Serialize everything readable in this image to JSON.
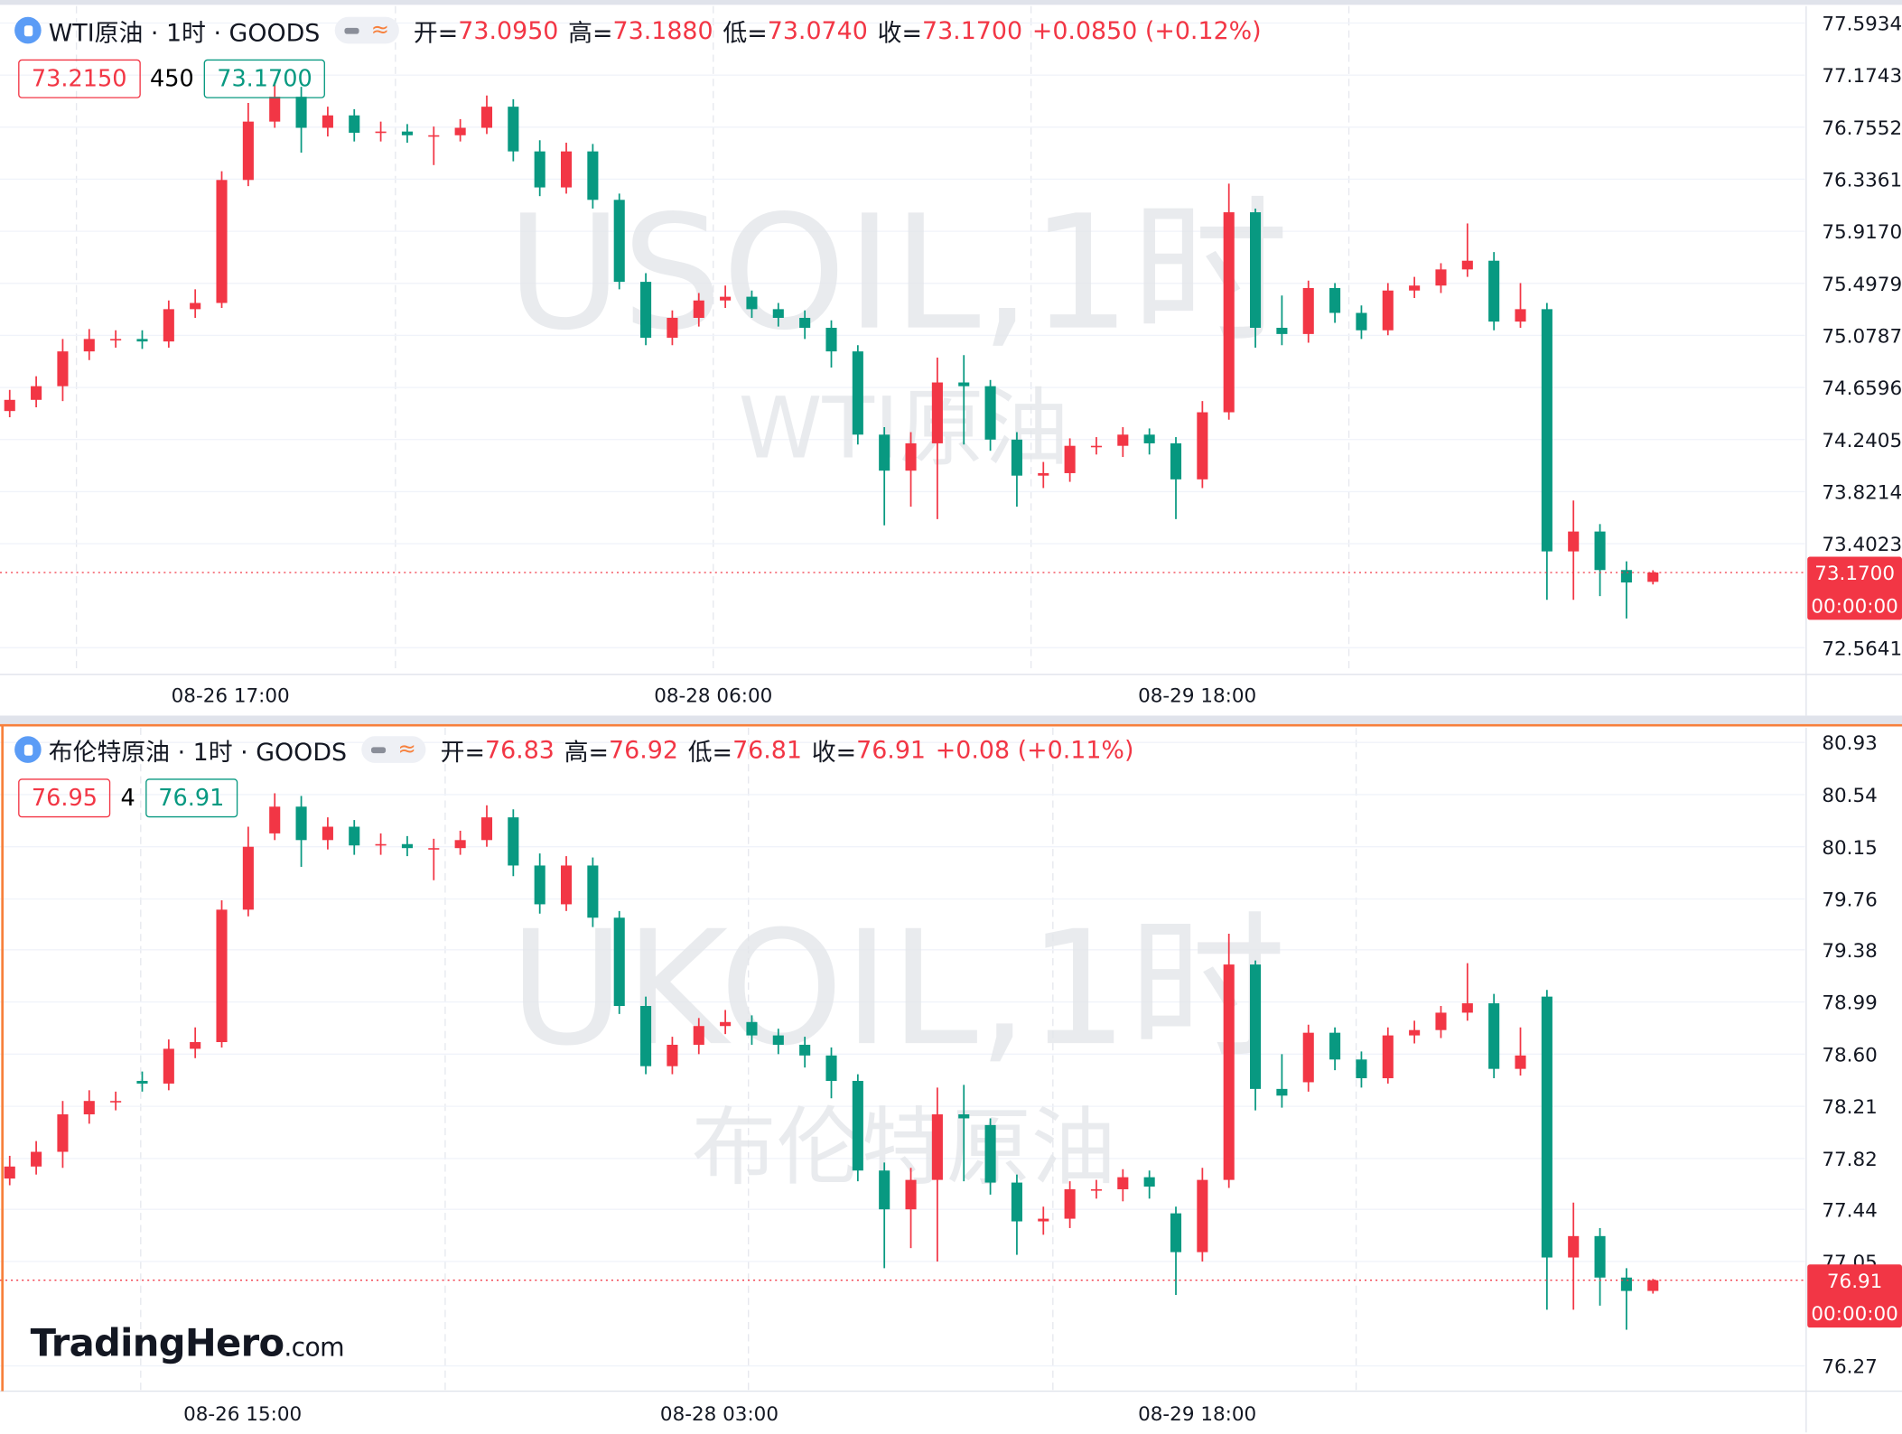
{
  "chart_data": [
    {
      "type": "candlestick",
      "title": "WTI原油 · 1时 · GOODS",
      "watermark": "USOIL,1时",
      "watermark_sub": "WTI原油",
      "ohlc_labels": [
        "开=",
        "高=",
        "低=",
        "收="
      ],
      "ohlc_printed": [
        "73.0950",
        "73.1880",
        "73.0740",
        "73.1700"
      ],
      "change": "+0.0850 (+0.12%)",
      "bid": "73.2150",
      "spread": "450",
      "ask": "73.1700",
      "last_price_label": "73.1700",
      "countdown": "00:00:00",
      "x_labels": [
        "08-26 17:00",
        "08-28 06:00",
        "08-29 18:00"
      ],
      "up_color": "#f23645",
      "down_color": "#089981",
      "ylim": [
        72.36,
        77.73
      ],
      "yticks": [
        77.5934,
        77.1743,
        76.7552,
        76.3361,
        {
          "value": 75.917,
          "label": "75.9170"
        },
        75.4979,
        75.0787,
        74.6596,
        74.2405,
        73.8214,
        73.4023,
        72.5641
      ],
      "open": [
        74.47,
        74.56,
        74.67,
        74.95,
        75.05,
        75.05,
        75.03,
        75.29,
        75.34,
        76.33,
        76.8,
        77.0,
        76.75,
        76.85,
        76.71,
        76.72,
        76.69,
        76.69,
        76.75,
        76.92,
        76.56,
        76.27,
        76.56,
        76.17,
        75.51,
        75.06,
        75.22,
        75.36,
        75.39,
        75.29,
        75.22,
        75.14,
        74.95,
        74.28,
        73.99,
        74.21,
        74.7,
        74.67,
        74.24,
        73.95,
        73.97,
        74.19,
        74.19,
        74.28,
        74.21,
        73.92,
        74.46,
        76.07,
        75.14,
        75.09,
        75.46,
        75.26,
        75.12,
        75.44,
        75.48,
        75.61,
        75.68,
        75.19,
        75.29,
        73.34,
        73.5,
        73.19,
        73.095
      ],
      "high": [
        74.64,
        74.75,
        75.05,
        75.13,
        75.12,
        75.12,
        75.36,
        75.45,
        76.4,
        76.95,
        77.1,
        77.08,
        76.92,
        76.9,
        76.8,
        76.78,
        76.76,
        76.82,
        77.01,
        76.98,
        76.65,
        76.63,
        76.62,
        76.22,
        75.58,
        75.28,
        75.42,
        75.48,
        75.44,
        75.34,
        75.28,
        75.2,
        75.0,
        74.34,
        74.3,
        74.9,
        74.92,
        74.72,
        74.3,
        74.06,
        74.25,
        74.26,
        74.34,
        74.33,
        74.26,
        74.55,
        76.3,
        76.1,
        75.4,
        75.52,
        75.5,
        75.32,
        75.5,
        75.55,
        75.66,
        75.98,
        75.75,
        75.5,
        75.34,
        73.75,
        73.56,
        73.26,
        73.188
      ],
      "low": [
        74.42,
        74.5,
        74.55,
        74.88,
        74.98,
        74.97,
        74.98,
        75.22,
        75.3,
        76.28,
        76.75,
        76.55,
        76.68,
        76.64,
        76.64,
        76.63,
        76.45,
        76.64,
        76.7,
        76.48,
        76.2,
        76.22,
        76.1,
        75.45,
        75.0,
        75.0,
        75.15,
        75.3,
        75.22,
        75.15,
        75.05,
        74.82,
        74.2,
        73.55,
        73.7,
        73.6,
        74.2,
        74.15,
        73.7,
        73.85,
        73.9,
        74.12,
        74.1,
        74.12,
        73.6,
        73.85,
        74.4,
        74.98,
        75.0,
        75.02,
        75.18,
        75.05,
        75.08,
        75.38,
        75.42,
        75.55,
        75.12,
        75.14,
        72.95,
        72.95,
        72.98,
        72.8,
        73.074
      ],
      "close": [
        74.56,
        74.67,
        74.95,
        75.05,
        75.05,
        75.03,
        75.29,
        75.34,
        76.33,
        76.8,
        77.0,
        76.75,
        76.85,
        76.71,
        76.72,
        76.69,
        76.69,
        76.75,
        76.92,
        76.56,
        76.27,
        76.56,
        76.17,
        75.51,
        75.06,
        75.22,
        75.36,
        75.39,
        75.29,
        75.22,
        75.14,
        74.95,
        74.28,
        73.99,
        74.21,
        74.7,
        74.67,
        74.24,
        73.95,
        73.97,
        74.19,
        74.19,
        74.28,
        74.21,
        73.92,
        74.46,
        76.07,
        75.14,
        75.09,
        75.46,
        75.26,
        75.12,
        75.44,
        75.48,
        75.61,
        75.68,
        75.19,
        75.29,
        73.34,
        73.5,
        73.19,
        73.09,
        73.17
      ]
    },
    {
      "type": "candlestick",
      "title": "布伦特原油 · 1时 · GOODS",
      "watermark": "UKOIL,1时",
      "watermark_sub": "布伦特原油",
      "ohlc_labels": [
        "开=",
        "高=",
        "低=",
        "收="
      ],
      "ohlc_printed": [
        "76.83",
        "76.92",
        "76.81",
        "76.91"
      ],
      "change": "+0.08 (+0.11%)",
      "bid": "76.95",
      "spread": "4",
      "ask": "76.91",
      "last_price_label": "76.91",
      "countdown": "00:00:00",
      "x_labels": [
        "08-26 15:00",
        "08-28 03:00",
        "08-29 18:00"
      ],
      "up_color": "#f23645",
      "down_color": "#089981",
      "ylim": [
        76.09,
        81.04
      ],
      "yticks": [
        80.93,
        80.54,
        80.15,
        79.76,
        79.38,
        78.99,
        {
          "value": 78.6,
          "label": "78.60"
        },
        78.21,
        77.82,
        77.44,
        77.05,
        76.27
      ],
      "open": [
        77.67,
        77.76,
        77.87,
        78.15,
        78.25,
        78.4,
        78.38,
        78.64,
        78.69,
        79.68,
        80.25,
        80.45,
        80.2,
        80.3,
        80.16,
        80.17,
        80.14,
        80.14,
        80.2,
        80.37,
        80.01,
        79.72,
        80.01,
        79.62,
        78.96,
        78.51,
        78.67,
        78.81,
        78.84,
        78.74,
        78.67,
        78.59,
        78.4,
        77.73,
        77.44,
        77.66,
        78.15,
        78.07,
        77.64,
        77.35,
        77.37,
        77.59,
        77.59,
        77.68,
        77.41,
        77.12,
        77.66,
        79.27,
        78.34,
        78.39,
        78.76,
        78.56,
        78.42,
        78.74,
        78.78,
        78.91,
        78.98,
        78.49,
        79.03,
        77.08,
        77.24,
        76.93,
        76.83
      ],
      "high": [
        77.84,
        77.95,
        78.25,
        78.33,
        78.32,
        78.47,
        78.71,
        78.8,
        79.75,
        80.3,
        80.55,
        80.53,
        80.37,
        80.35,
        80.25,
        80.23,
        80.21,
        80.27,
        80.46,
        80.43,
        80.1,
        80.08,
        80.07,
        79.67,
        79.03,
        78.73,
        78.87,
        78.93,
        78.89,
        78.79,
        78.73,
        78.65,
        78.45,
        77.79,
        77.75,
        78.35,
        78.37,
        78.12,
        77.7,
        77.46,
        77.65,
        77.66,
        77.74,
        77.73,
        77.46,
        77.75,
        79.5,
        79.3,
        78.6,
        78.82,
        78.8,
        78.62,
        78.8,
        78.85,
        78.96,
        79.28,
        79.05,
        78.8,
        79.08,
        77.49,
        77.3,
        77.0,
        76.92
      ],
      "low": [
        77.62,
        77.7,
        77.75,
        78.08,
        78.18,
        78.32,
        78.33,
        78.57,
        78.65,
        79.63,
        80.2,
        80.0,
        80.13,
        80.09,
        80.09,
        80.08,
        79.9,
        80.09,
        80.15,
        79.93,
        79.65,
        79.67,
        79.55,
        78.9,
        78.45,
        78.45,
        78.6,
        78.75,
        78.67,
        78.6,
        78.5,
        78.27,
        77.65,
        77.0,
        77.15,
        77.05,
        77.65,
        77.55,
        77.1,
        77.25,
        77.3,
        77.52,
        77.5,
        77.52,
        76.8,
        77.05,
        77.6,
        78.18,
        78.2,
        78.32,
        78.48,
        78.35,
        78.38,
        78.68,
        78.72,
        78.85,
        78.42,
        78.44,
        76.69,
        76.69,
        76.72,
        76.54,
        76.81
      ],
      "close": [
        77.76,
        77.87,
        78.15,
        78.25,
        78.25,
        78.38,
        78.64,
        78.69,
        79.68,
        80.15,
        80.45,
        80.2,
        80.3,
        80.16,
        80.17,
        80.14,
        80.14,
        80.2,
        80.37,
        80.01,
        79.72,
        80.01,
        79.62,
        78.96,
        78.51,
        78.67,
        78.81,
        78.84,
        78.74,
        78.67,
        78.59,
        78.4,
        77.73,
        77.44,
        77.66,
        78.15,
        78.12,
        77.64,
        77.35,
        77.37,
        77.59,
        77.59,
        77.68,
        77.61,
        77.12,
        77.66,
        79.27,
        78.34,
        78.29,
        78.76,
        78.56,
        78.42,
        78.74,
        78.78,
        78.91,
        78.98,
        78.49,
        78.59,
        77.08,
        77.24,
        76.93,
        76.83,
        76.91
      ]
    }
  ],
  "logo": {
    "brand": "TradingHero",
    "suffix": ".com"
  }
}
